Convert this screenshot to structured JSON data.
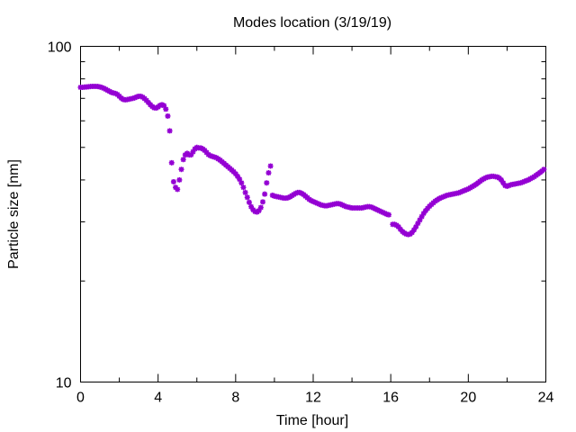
{
  "chart_data": {
    "type": "scatter",
    "title": "Modes location (3/19/19)",
    "xlabel": "Time [hour]",
    "ylabel": "Particle size [nm]",
    "xlim": [
      0,
      24
    ],
    "ylim": [
      10,
      100
    ],
    "yscale": "log",
    "x_ticks": [
      0,
      4,
      8,
      12,
      16,
      20,
      24
    ],
    "x_tick_labels": [
      "0",
      "4",
      "8",
      "12",
      "16",
      "20",
      "24"
    ],
    "y_ticks": [
      10,
      100
    ],
    "y_tick_labels": [
      "10",
      "100"
    ],
    "grid": false,
    "marker_color": "#9400d3",
    "series": [
      {
        "points": [
          [
            0.0,
            75.5
          ],
          [
            0.1,
            75.5
          ],
          [
            0.2,
            75.6
          ],
          [
            0.3,
            75.7
          ],
          [
            0.4,
            75.8
          ],
          [
            0.5,
            75.9
          ],
          [
            0.6,
            76.0
          ],
          [
            0.7,
            76.0
          ],
          [
            0.8,
            76.0
          ],
          [
            0.9,
            75.9
          ],
          [
            1.0,
            75.7
          ],
          [
            1.1,
            75.4
          ],
          [
            1.2,
            75.0
          ],
          [
            1.3,
            74.5
          ],
          [
            1.4,
            73.9
          ],
          [
            1.5,
            73.4
          ],
          [
            1.6,
            72.9
          ],
          [
            1.7,
            72.6
          ],
          [
            1.8,
            72.4
          ],
          [
            1.9,
            71.9
          ],
          [
            2.0,
            71.0
          ],
          [
            2.1,
            70.1
          ],
          [
            2.2,
            69.5
          ],
          [
            2.3,
            69.3
          ],
          [
            2.4,
            69.4
          ],
          [
            2.5,
            69.6
          ],
          [
            2.6,
            69.8
          ],
          [
            2.7,
            70.0
          ],
          [
            2.8,
            70.3
          ],
          [
            2.9,
            70.7
          ],
          [
            3.0,
            71.0
          ],
          [
            3.1,
            71.0
          ],
          [
            3.2,
            70.6
          ],
          [
            3.3,
            69.9
          ],
          [
            3.4,
            69.0
          ],
          [
            3.5,
            68.0
          ],
          [
            3.6,
            67.0
          ],
          [
            3.7,
            66.2
          ],
          [
            3.8,
            65.6
          ],
          [
            3.9,
            65.5
          ],
          [
            4.0,
            66.0
          ],
          [
            4.1,
            66.7
          ],
          [
            4.2,
            67.0
          ],
          [
            4.3,
            66.6
          ],
          [
            4.4,
            65.0
          ],
          [
            4.5,
            62.0
          ],
          [
            4.6,
            56.0
          ],
          [
            4.7,
            45.0
          ],
          [
            4.8,
            39.5
          ],
          [
            4.9,
            38.0
          ],
          [
            5.0,
            37.5
          ],
          [
            5.1,
            40.0
          ],
          [
            5.2,
            43.0
          ],
          [
            5.3,
            46.0
          ],
          [
            5.4,
            47.5
          ],
          [
            5.5,
            48.0
          ],
          [
            5.6,
            47.5
          ],
          [
            5.7,
            47.5
          ],
          [
            5.8,
            48.5
          ],
          [
            5.9,
            49.5
          ],
          [
            6.0,
            50.0
          ],
          [
            6.1,
            49.8
          ],
          [
            6.2,
            49.8
          ],
          [
            6.3,
            49.5
          ],
          [
            6.4,
            49.0
          ],
          [
            6.5,
            48.3
          ],
          [
            6.6,
            47.6
          ],
          [
            6.7,
            47.2
          ],
          [
            6.8,
            47.0
          ],
          [
            6.9,
            46.8
          ],
          [
            7.0,
            46.6
          ],
          [
            7.1,
            46.2
          ],
          [
            7.2,
            45.8
          ],
          [
            7.3,
            45.3
          ],
          [
            7.4,
            44.8
          ],
          [
            7.5,
            44.3
          ],
          [
            7.6,
            43.8
          ],
          [
            7.7,
            43.3
          ],
          [
            7.8,
            42.8
          ],
          [
            7.9,
            42.3
          ],
          [
            8.0,
            41.7
          ],
          [
            8.1,
            41.0
          ],
          [
            8.2,
            40.2
          ],
          [
            8.3,
            39.2
          ],
          [
            8.4,
            38.0
          ],
          [
            8.5,
            36.7
          ],
          [
            8.6,
            35.5
          ],
          [
            8.7,
            34.3
          ],
          [
            8.8,
            33.3
          ],
          [
            8.9,
            32.6
          ],
          [
            9.0,
            32.2
          ],
          [
            9.1,
            32.1
          ],
          [
            9.2,
            32.4
          ],
          [
            9.3,
            33.1
          ],
          [
            9.4,
            34.4
          ],
          [
            9.5,
            36.3
          ],
          [
            9.6,
            39.2
          ],
          [
            9.7,
            42.0
          ],
          [
            9.8,
            44.0
          ],
          [
            9.9,
            36.0
          ],
          [
            10.0,
            35.8
          ],
          [
            10.1,
            35.7
          ],
          [
            10.2,
            35.6
          ],
          [
            10.3,
            35.5
          ],
          [
            10.4,
            35.4
          ],
          [
            10.5,
            35.3
          ],
          [
            10.6,
            35.3
          ],
          [
            10.7,
            35.4
          ],
          [
            10.8,
            35.6
          ],
          [
            10.9,
            35.9
          ],
          [
            11.0,
            36.2
          ],
          [
            11.1,
            36.5
          ],
          [
            11.2,
            36.7
          ],
          [
            11.3,
            36.7
          ],
          [
            11.4,
            36.5
          ],
          [
            11.5,
            36.2
          ],
          [
            11.6,
            35.8
          ],
          [
            11.7,
            35.4
          ],
          [
            11.8,
            35.0
          ],
          [
            11.9,
            34.7
          ],
          [
            12.0,
            34.5
          ],
          [
            12.1,
            34.3
          ],
          [
            12.2,
            34.1
          ],
          [
            12.3,
            33.9
          ],
          [
            12.4,
            33.7
          ],
          [
            12.5,
            33.6
          ],
          [
            12.6,
            33.5
          ],
          [
            12.7,
            33.5
          ],
          [
            12.8,
            33.6
          ],
          [
            12.9,
            33.7
          ],
          [
            13.0,
            33.8
          ],
          [
            13.1,
            33.9
          ],
          [
            13.2,
            34.0
          ],
          [
            13.3,
            34.0
          ],
          [
            13.4,
            33.9
          ],
          [
            13.5,
            33.7
          ],
          [
            13.6,
            33.5
          ],
          [
            13.7,
            33.3
          ],
          [
            13.8,
            33.2
          ],
          [
            13.9,
            33.1
          ],
          [
            14.0,
            33.0
          ],
          [
            14.1,
            33.0
          ],
          [
            14.2,
            33.0
          ],
          [
            14.3,
            33.0
          ],
          [
            14.4,
            33.0
          ],
          [
            14.5,
            33.0
          ],
          [
            14.6,
            33.1
          ],
          [
            14.7,
            33.2
          ],
          [
            14.8,
            33.3
          ],
          [
            14.9,
            33.3
          ],
          [
            15.0,
            33.2
          ],
          [
            15.1,
            33.0
          ],
          [
            15.2,
            32.8
          ],
          [
            15.3,
            32.6
          ],
          [
            15.4,
            32.4
          ],
          [
            15.5,
            32.2
          ],
          [
            15.6,
            32.0
          ],
          [
            15.7,
            31.8
          ],
          [
            15.8,
            31.6
          ],
          [
            15.9,
            31.5
          ],
          [
            16.1,
            29.5
          ],
          [
            16.2,
            29.5
          ],
          [
            16.3,
            29.3
          ],
          [
            16.4,
            29.0
          ],
          [
            16.5,
            28.5
          ],
          [
            16.6,
            28.1
          ],
          [
            16.7,
            27.8
          ],
          [
            16.8,
            27.6
          ],
          [
            16.9,
            27.5
          ],
          [
            17.0,
            27.6
          ],
          [
            17.1,
            27.9
          ],
          [
            17.2,
            28.4
          ],
          [
            17.3,
            29.0
          ],
          [
            17.4,
            29.7
          ],
          [
            17.5,
            30.4
          ],
          [
            17.6,
            31.1
          ],
          [
            17.7,
            31.8
          ],
          [
            17.8,
            32.4
          ],
          [
            17.9,
            32.9
          ],
          [
            18.0,
            33.4
          ],
          [
            18.1,
            33.8
          ],
          [
            18.2,
            34.2
          ],
          [
            18.3,
            34.6
          ],
          [
            18.4,
            34.9
          ],
          [
            18.5,
            35.2
          ],
          [
            18.6,
            35.4
          ],
          [
            18.7,
            35.6
          ],
          [
            18.8,
            35.8
          ],
          [
            18.9,
            36.0
          ],
          [
            19.0,
            36.1
          ],
          [
            19.1,
            36.2
          ],
          [
            19.2,
            36.3
          ],
          [
            19.3,
            36.4
          ],
          [
            19.4,
            36.5
          ],
          [
            19.5,
            36.6
          ],
          [
            19.6,
            36.8
          ],
          [
            19.7,
            37.0
          ],
          [
            19.8,
            37.2
          ],
          [
            19.9,
            37.4
          ],
          [
            20.0,
            37.6
          ],
          [
            20.1,
            37.9
          ],
          [
            20.2,
            38.2
          ],
          [
            20.3,
            38.5
          ],
          [
            20.4,
            38.8
          ],
          [
            20.5,
            39.2
          ],
          [
            20.6,
            39.6
          ],
          [
            20.7,
            40.0
          ],
          [
            20.8,
            40.3
          ],
          [
            20.9,
            40.6
          ],
          [
            21.0,
            40.8
          ],
          [
            21.1,
            40.9
          ],
          [
            21.2,
            41.0
          ],
          [
            21.3,
            41.0
          ],
          [
            21.4,
            40.9
          ],
          [
            21.5,
            40.8
          ],
          [
            21.6,
            40.5
          ],
          [
            21.7,
            40.0
          ],
          [
            21.8,
            39.2
          ],
          [
            21.9,
            38.5
          ],
          [
            22.0,
            38.3
          ],
          [
            22.1,
            38.5
          ],
          [
            22.2,
            38.7
          ],
          [
            22.3,
            38.8
          ],
          [
            22.4,
            38.9
          ],
          [
            22.5,
            39.0
          ],
          [
            22.6,
            39.1
          ],
          [
            22.7,
            39.2
          ],
          [
            22.8,
            39.4
          ],
          [
            22.9,
            39.6
          ],
          [
            23.0,
            39.8
          ],
          [
            23.1,
            40.0
          ],
          [
            23.2,
            40.3
          ],
          [
            23.3,
            40.6
          ],
          [
            23.4,
            40.9
          ],
          [
            23.5,
            41.3
          ],
          [
            23.6,
            41.7
          ],
          [
            23.7,
            42.1
          ],
          [
            23.8,
            42.5
          ],
          [
            23.9,
            43.0
          ]
        ]
      }
    ]
  }
}
